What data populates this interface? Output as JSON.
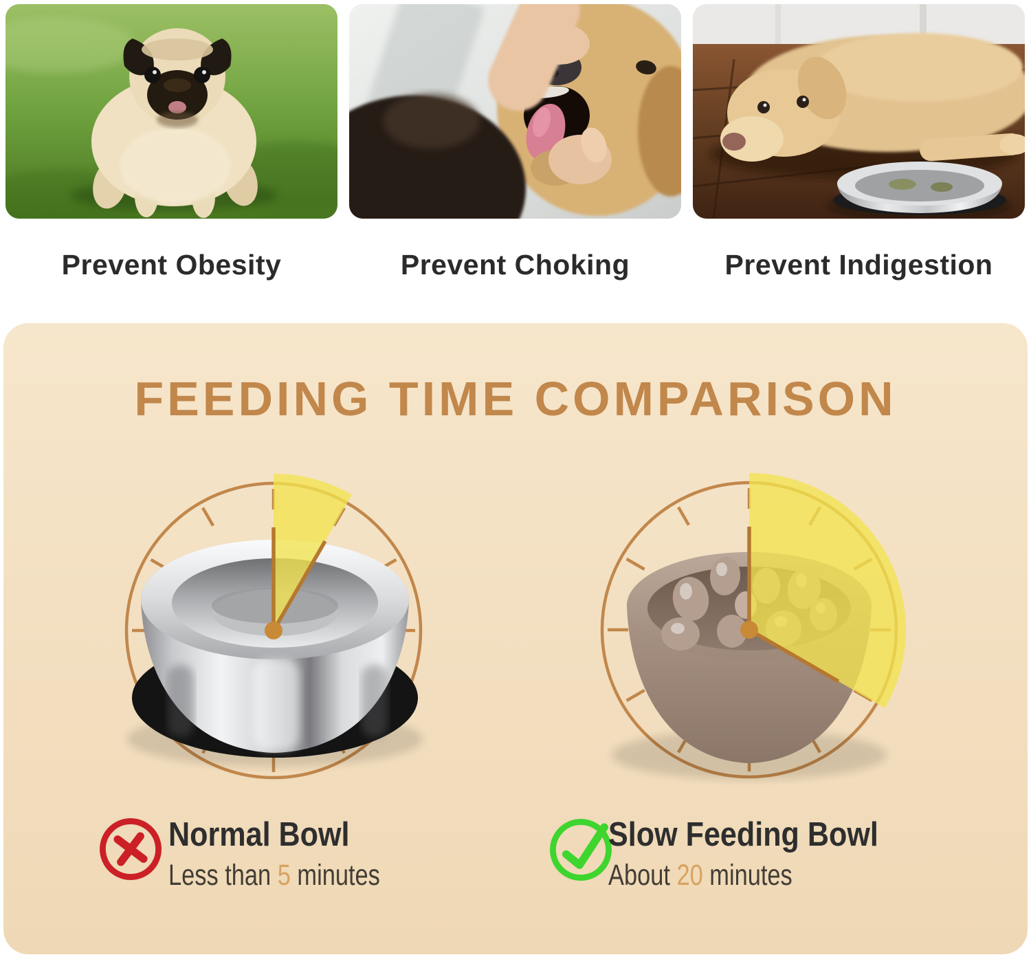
{
  "benefits": {
    "items": [
      {
        "caption": "Prevent Obesity",
        "photo": "overweight-pug-on-grass"
      },
      {
        "caption": "Prevent Choking",
        "photo": "hand-checking-golden-retriever-mouth"
      },
      {
        "caption": "Prevent Indigestion",
        "photo": "labrador-lying-beside-steel-bowl"
      }
    ]
  },
  "comparison": {
    "title": "FEEDING TIME COMPARISON",
    "clocks": [
      {
        "name": "normal-bowl-clock",
        "bowl": "stainless-steel-bowl",
        "minutes": 5,
        "wedge_degrees": 30
      },
      {
        "name": "slow-bowl-clock",
        "bowl": "slow-feeder-maze-bowl",
        "minutes": 20,
        "wedge_degrees": 120
      }
    ],
    "results": [
      {
        "icon": "cross-icon",
        "label": "Normal Bowl",
        "sub_prefix": "Less than ",
        "sub_value": "5",
        "sub_suffix": " minutes"
      },
      {
        "icon": "check-icon",
        "label": "Slow Feeding Bowl",
        "sub_prefix": "About ",
        "sub_value": "20",
        "sub_suffix": " minutes"
      }
    ],
    "colors": {
      "panel_top": "#F6E6CB",
      "panel_bottom": "#EFD8B5",
      "title": "#C1874B",
      "ring": "#C1874B",
      "hand": "#B5782F",
      "center_dot": "#C98A38",
      "wedge": "#F2E34F",
      "cross": "#CB2026",
      "check": "#3ED52E",
      "accent_number": "#D9A260",
      "label_text": "#2E2E2E",
      "sub_text": "#423D35",
      "caption_text": "#2B2B2B"
    }
  }
}
